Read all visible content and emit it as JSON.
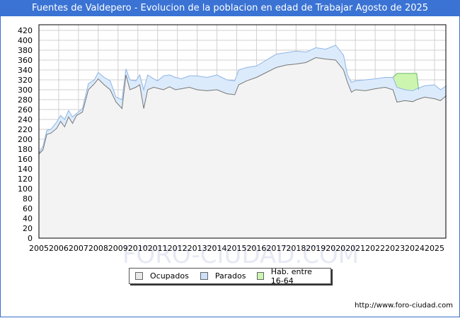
{
  "header": {
    "title": "Fuentes de Valdepero - Evolucion de la poblacion en edad de Trabajar Agosto de 2025"
  },
  "watermark": "FORO-CIUDAD.COM",
  "source": "http://www.foro-ciudad.com",
  "legend": [
    {
      "label": "Ocupados",
      "color": "#e8e8e8"
    },
    {
      "label": "Parados",
      "color": "#cce0f8"
    },
    {
      "label": "Hab. entre 16-64",
      "color": "#ccf5b0"
    }
  ],
  "chart_data": {
    "type": "area",
    "title": "Fuentes de Valdepero - Evolucion de la poblacion en edad de Trabajar Agosto de 2025",
    "xlabel": "",
    "ylabel": "",
    "ylim": [
      0,
      420
    ],
    "xlim": [
      2005,
      2025.6
    ],
    "grid": true,
    "legend_position": "bottom",
    "y_ticks": [
      0,
      20,
      40,
      60,
      80,
      100,
      120,
      140,
      160,
      180,
      200,
      220,
      240,
      260,
      280,
      300,
      320,
      340,
      360,
      380,
      400,
      420
    ],
    "x_ticks": [
      "2005",
      "2006",
      "2007",
      "2008",
      "2009",
      "2010",
      "2011",
      "2012",
      "2013",
      "2014",
      "2015",
      "2016",
      "2017",
      "2018",
      "2019",
      "2020",
      "2021",
      "2022",
      "2023",
      "2024",
      "2025"
    ],
    "x": [
      2005.0,
      2005.2,
      2005.4,
      2005.6,
      2005.9,
      2006.1,
      2006.3,
      2006.5,
      2006.7,
      2006.9,
      2007.2,
      2007.5,
      2007.8,
      2008.0,
      2008.3,
      2008.6,
      2008.9,
      2009.2,
      2009.4,
      2009.6,
      2009.9,
      2010.1,
      2010.3,
      2010.5,
      2010.8,
      2011.0,
      2011.3,
      2011.6,
      2011.9,
      2012.2,
      2012.6,
      2013.0,
      2013.5,
      2014.0,
      2014.5,
      2014.9,
      2015.1,
      2015.5,
      2016.0,
      2016.5,
      2017.0,
      2017.5,
      2018.0,
      2018.5,
      2019.0,
      2019.5,
      2020.0,
      2020.4,
      2020.6,
      2020.8,
      2021.0,
      2021.5,
      2022.0,
      2022.5,
      2022.9,
      2023.1,
      2023.5,
      2023.9,
      2024.1,
      2024.5,
      2025.0,
      2025.3,
      2025.6
    ],
    "series": [
      {
        "name": "Ocupados",
        "values": [
          170,
          178,
          210,
          212,
          222,
          236,
          225,
          245,
          232,
          248,
          255,
          300,
          312,
          322,
          310,
          300,
          275,
          262,
          330,
          300,
          305,
          310,
          262,
          300,
          305,
          303,
          300,
          306,
          300,
          302,
          305,
          300,
          298,
          300,
          292,
          290,
          310,
          318,
          325,
          335,
          345,
          350,
          352,
          355,
          365,
          362,
          360,
          340,
          315,
          295,
          300,
          298,
          302,
          305,
          300,
          275,
          278,
          276,
          280,
          285,
          282,
          278,
          288
        ],
        "color": "#808080"
      },
      {
        "name": "Parados",
        "values": [
          172,
          185,
          218,
          220,
          235,
          248,
          240,
          258,
          245,
          252,
          262,
          312,
          320,
          335,
          325,
          318,
          285,
          280,
          342,
          320,
          318,
          330,
          300,
          330,
          322,
          318,
          328,
          330,
          325,
          322,
          328,
          328,
          325,
          330,
          320,
          318,
          340,
          345,
          348,
          360,
          372,
          375,
          378,
          376,
          385,
          382,
          390,
          370,
          330,
          315,
          318,
          320,
          322,
          325,
          325,
          305,
          300,
          298,
          302,
          308,
          310,
          300,
          308
        ],
        "color": "#9bbce8"
      },
      {
        "name": "Hab. entre 16-64",
        "segment_x": [
          2022.9,
          2023.1,
          2024.1,
          2024.2
        ],
        "values": [
          325,
          333,
          333,
          300
        ],
        "color": "#7fbf7f"
      }
    ]
  }
}
